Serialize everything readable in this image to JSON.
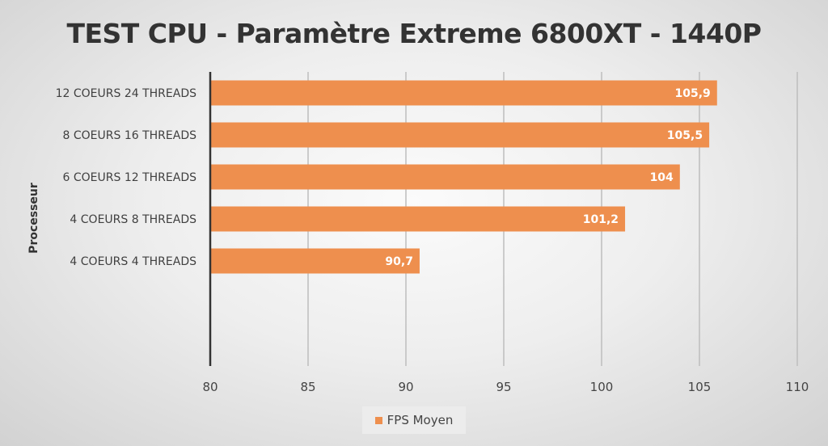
{
  "chart_data": {
    "type": "bar",
    "orientation": "horizontal",
    "title": "TEST CPU - Paramètre Extreme 6800XT - 1440P",
    "ylabel": "Processeur",
    "xlabel": "",
    "categories": [
      "12 COEURS 24 THREADS",
      "8 COEURS 16 THREADS",
      "6 COEURS 12 THREADS",
      "4 COEURS 8 THREADS",
      "4 COEURS 4 THREADS"
    ],
    "series": [
      {
        "name": "FPS Moyen",
        "values": [
          105.9,
          105.5,
          104,
          101.2,
          90.7
        ]
      }
    ],
    "data_labels": [
      "105,9",
      "105,5",
      "104",
      "101,2",
      "90,7"
    ],
    "xlim": [
      80,
      110
    ],
    "xticks": [
      "80",
      "85",
      "90",
      "95",
      "100",
      "105",
      "110"
    ],
    "grid": "vertical",
    "legend": "bottom",
    "colors": {
      "bar": "#ee8f4e",
      "grid": "#bdbdbd",
      "axis": "#333333"
    }
  }
}
